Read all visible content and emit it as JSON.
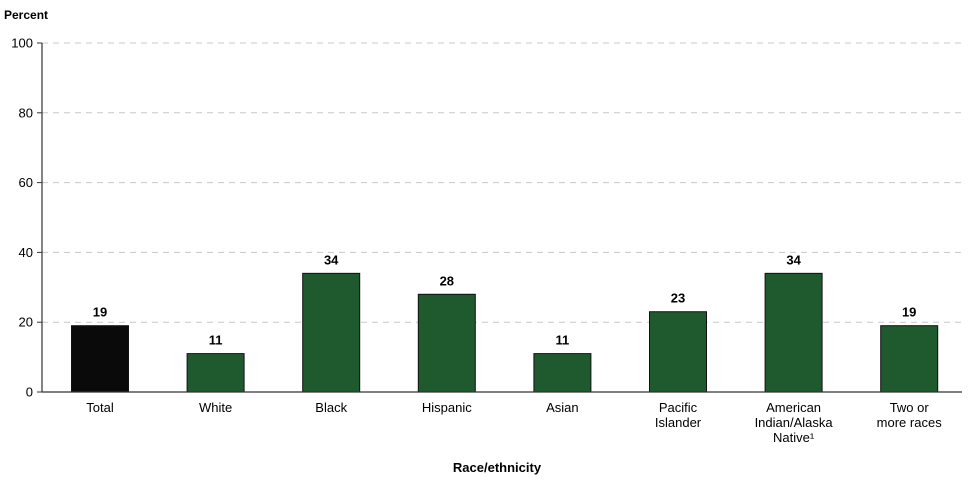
{
  "chart_data": {
    "type": "bar",
    "ylabel": "Percent",
    "xlabel": "Race/ethnicity",
    "ylim": [
      0,
      100
    ],
    "yticks": [
      0,
      20,
      40,
      60,
      80,
      100
    ],
    "grid": true,
    "categories": [
      [
        "Total"
      ],
      [
        "White"
      ],
      [
        "Black"
      ],
      [
        "Hispanic"
      ],
      [
        "Asian"
      ],
      [
        "Pacific",
        "Islander"
      ],
      [
        "American",
        "Indian/Alaska",
        "Native¹"
      ],
      [
        "Two or",
        "more races"
      ]
    ],
    "values": [
      19,
      11,
      34,
      28,
      11,
      23,
      34,
      19
    ],
    "colors": {
      "highlight": "#0a0a0a",
      "bar": "#1f5a2e",
      "bar_edge": "#111111"
    }
  }
}
